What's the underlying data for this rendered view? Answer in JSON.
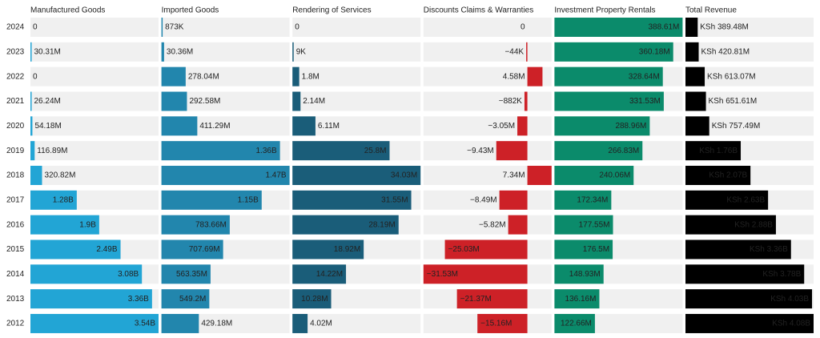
{
  "chart_data": {
    "type": "bar",
    "categories": [
      "2024",
      "2023",
      "2022",
      "2021",
      "2020",
      "2019",
      "2018",
      "2017",
      "2016",
      "2015",
      "2014",
      "2013",
      "2012"
    ],
    "series": [
      {
        "name": "Manufactured Goods",
        "color": "#22a5d5",
        "values": [
          0,
          30310000,
          0,
          26240000,
          54180000,
          116890000,
          320820000,
          1280000000,
          1900000000,
          2490000000,
          3080000000,
          3360000000,
          3540000000
        ],
        "value_labels": [
          "0",
          "30.31M",
          "0",
          "26.24M",
          "54.18M",
          "116.89M",
          "320.82M",
          "1.28B",
          "1.9B",
          "2.49B",
          "3.08B",
          "3.36B",
          "3.54B"
        ]
      },
      {
        "name": "Imported Goods",
        "color": "#2286ad",
        "values": [
          873000,
          30360000,
          278040000,
          292580000,
          411290000,
          1360000000,
          1470000000,
          1150000000,
          783660000,
          707690000,
          563350000,
          549200000,
          429180000
        ],
        "value_labels": [
          "873K",
          "30.36M",
          "278.04M",
          "292.58M",
          "411.29M",
          "1.36B",
          "1.47B",
          "1.15B",
          "783.66M",
          "707.69M",
          "563.35M",
          "549.2M",
          "429.18M"
        ]
      },
      {
        "name": "Rendering of Services",
        "color": "#1a5d79",
        "values": [
          0,
          9000,
          1800000,
          2140000,
          6110000,
          25800000,
          34030000,
          31550000,
          28190000,
          18920000,
          14220000,
          10280000,
          4020000
        ],
        "value_labels": [
          "0",
          "9K",
          "1.8M",
          "2.14M",
          "6.11M",
          "25.8M",
          "34.03M",
          "31.55M",
          "28.19M",
          "18.92M",
          "14.22M",
          "10.28M",
          "4.02M"
        ]
      },
      {
        "name": "Discounts Claims & Warranties",
        "color": "#cd2127",
        "values": [
          0,
          -44000,
          4580000,
          -882000,
          -3050000,
          -9430000,
          7340000,
          -8490000,
          -5820000,
          -25030000,
          -31530000,
          -21370000,
          -15160000
        ],
        "value_labels": [
          "0",
          "−44K",
          "4.58M",
          "−882K",
          "−3.05M",
          "−9.43M",
          "7.34M",
          "−8.49M",
          "−5.82M",
          "−25.03M",
          "−31.53M",
          "−21.37M",
          "−15.16M"
        ]
      },
      {
        "name": "Investment Property Rentals",
        "color": "#0b8b6b",
        "values": [
          388610000,
          360180000,
          328640000,
          331530000,
          288960000,
          266830000,
          240060000,
          172340000,
          177550000,
          176500000,
          148930000,
          136160000,
          122660000
        ],
        "value_labels": [
          "388.61M",
          "360.18M",
          "328.64M",
          "331.53M",
          "288.96M",
          "266.83M",
          "240.06M",
          "172.34M",
          "177.55M",
          "176.5M",
          "148.93M",
          "136.16M",
          "122.66M"
        ]
      },
      {
        "name": "Total Revenue",
        "color": "#000000",
        "values": [
          389480000,
          420810000,
          613070000,
          651610000,
          757490000,
          1760000000,
          2070000000,
          2630000000,
          2880000000,
          3360000000,
          3780000000,
          4030000000,
          4080000000
        ],
        "value_labels": [
          "KSh 389.48M",
          "KSh 420.81M",
          "KSh 613.07M",
          "KSh 651.61M",
          "KSh 757.49M",
          "KSh 1.76B",
          "KSh 2.07B",
          "KSh 2.63B",
          "KSh 2.88B",
          "KSh 3.36B",
          "KSh 3.78B",
          "KSh 4.03B",
          "KSh 4.08B"
        ]
      }
    ]
  }
}
